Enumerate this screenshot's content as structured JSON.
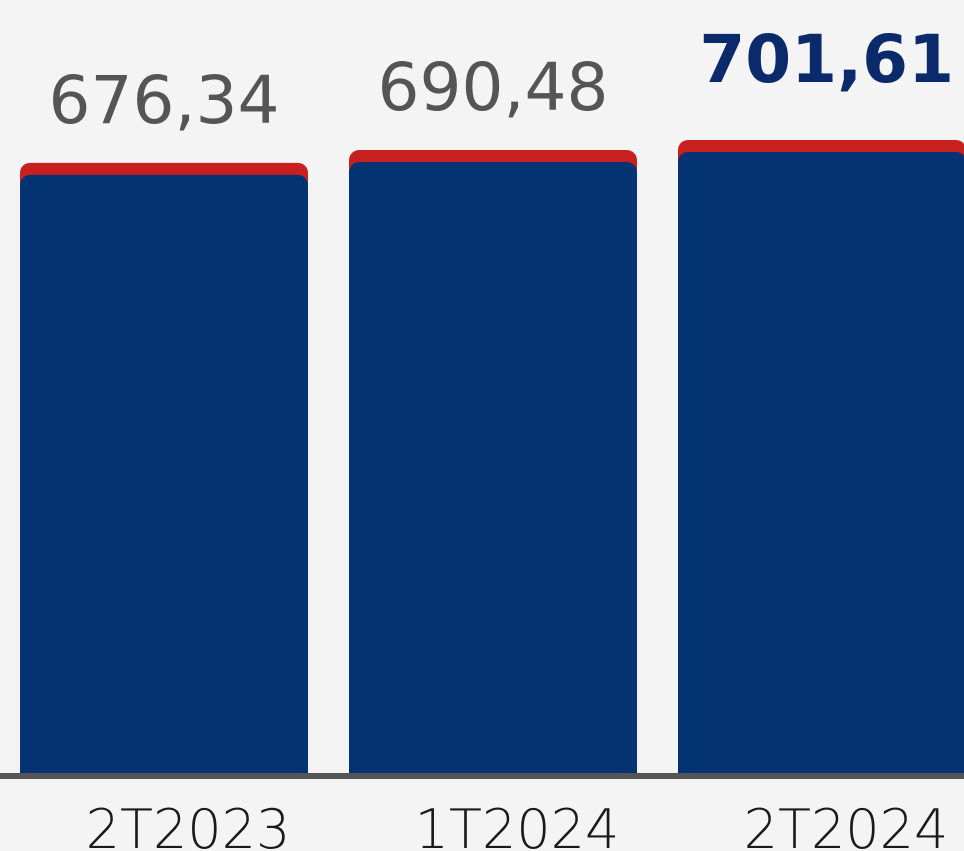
{
  "chart_data": {
    "type": "bar",
    "categories": [
      "2T2023",
      "1T2024",
      "2T2024"
    ],
    "values": [
      676.34,
      690.48,
      701.61
    ],
    "data_labels": [
      "676,34",
      "690,48",
      "701,61"
    ],
    "highlight_index": 2,
    "title": "",
    "xlabel": "",
    "ylabel": "",
    "ylim": [
      0,
      701.61
    ],
    "grid": false,
    "legend": "none",
    "colors": {
      "bar": "#033372",
      "bar_cap": "#c8201f",
      "axis": "#555555",
      "label": "#555555",
      "highlight_label": "#0b2a6b"
    }
  }
}
